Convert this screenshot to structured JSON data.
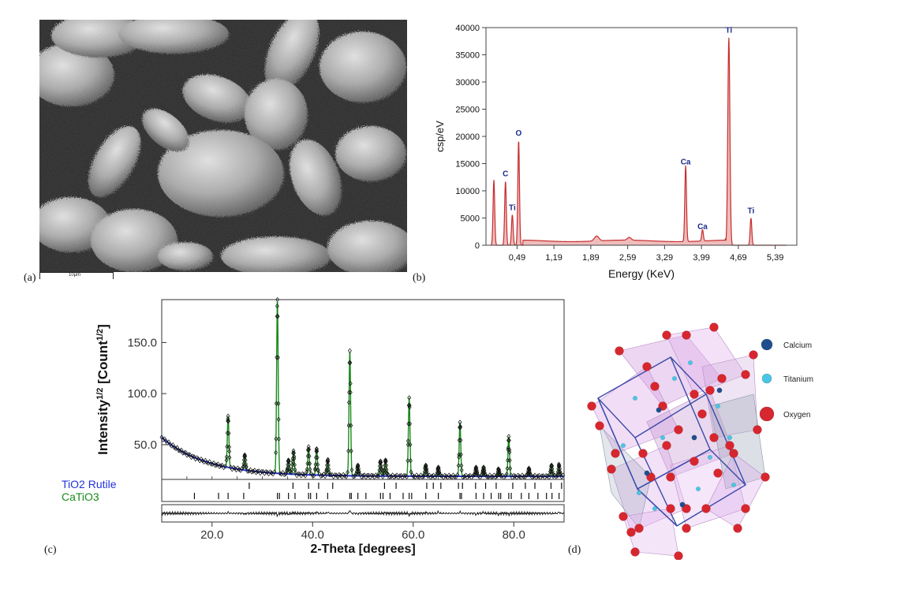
{
  "panels": {
    "a": {
      "label": "(a)",
      "scale_bar": "10μm"
    },
    "b": {
      "label": "(b)"
    },
    "c": {
      "label": "(c)"
    },
    "d": {
      "label": "(d)"
    }
  },
  "chart_data": [
    {
      "id": "edx",
      "type": "line",
      "xlabel": "Energy (KeV)",
      "ylabel": "csp/eV",
      "xlim": [
        -0.1,
        5.8
      ],
      "ylim": [
        0,
        40000
      ],
      "x_tick_labels": [
        "0,49",
        "1,19",
        "1,89",
        "2,59",
        "3,29",
        "3,99",
        "4,69",
        "5,39"
      ],
      "x_ticks": [
        0.49,
        1.19,
        1.89,
        2.59,
        3.29,
        3.99,
        4.69,
        5.39
      ],
      "y_ticks": [
        0,
        5000,
        10000,
        15000,
        20000,
        25000,
        30000,
        35000,
        40000
      ],
      "color": "#c42a2a",
      "peaks": [
        {
          "x": 0.05,
          "y": 12000,
          "label": ""
        },
        {
          "x": 0.27,
          "y": 11800,
          "label": "C"
        },
        {
          "x": 0.4,
          "y": 5600,
          "label": "Ti"
        },
        {
          "x": 0.52,
          "y": 19300,
          "label": "O"
        },
        {
          "x": 3.69,
          "y": 14000,
          "label": "Ca"
        },
        {
          "x": 4.01,
          "y": 2100,
          "label": "Ca"
        },
        {
          "x": 4.51,
          "y": 38200,
          "label": "Ti"
        },
        {
          "x": 4.93,
          "y": 5000,
          "label": "Ti"
        }
      ]
    },
    {
      "id": "xrd",
      "type": "line",
      "xlabel": "2-Theta [degrees]",
      "ylabel": "Intensity",
      "ylabel_sup": "1/2",
      "ylabel_unit": " [Count",
      "ylabel_close": "]",
      "xlim": [
        10,
        90
      ],
      "ylim": [
        16,
        192
      ],
      "x_tick_labels": [
        "20.0",
        "40.0",
        "60.0",
        "80.0"
      ],
      "x_ticks": [
        20,
        40,
        60,
        80
      ],
      "y_tick_labels": [
        "50.0",
        "100.0",
        "150.0"
      ],
      "y_ticks": [
        50,
        100,
        150
      ],
      "series": [
        {
          "name": "TiO2 Rutile",
          "color": "#2233dd"
        },
        {
          "name": "CaTiO3",
          "color": "#1a8a1a"
        }
      ],
      "peaks": [
        {
          "x": 23.2,
          "y": 78
        },
        {
          "x": 26.5,
          "y": 40
        },
        {
          "x": 33.0,
          "y": 192
        },
        {
          "x": 35.2,
          "y": 35
        },
        {
          "x": 36.2,
          "y": 44
        },
        {
          "x": 39.2,
          "y": 48
        },
        {
          "x": 40.8,
          "y": 46
        },
        {
          "x": 43.0,
          "y": 35
        },
        {
          "x": 47.4,
          "y": 142
        },
        {
          "x": 49.0,
          "y": 30
        },
        {
          "x": 53.5,
          "y": 34
        },
        {
          "x": 54.5,
          "y": 35
        },
        {
          "x": 59.2,
          "y": 96
        },
        {
          "x": 62.5,
          "y": 30
        },
        {
          "x": 65.0,
          "y": 28
        },
        {
          "x": 69.3,
          "y": 72
        },
        {
          "x": 72.5,
          "y": 28
        },
        {
          "x": 74.0,
          "y": 28
        },
        {
          "x": 77.0,
          "y": 26
        },
        {
          "x": 79.0,
          "y": 58
        },
        {
          "x": 83.0,
          "y": 27
        },
        {
          "x": 87.5,
          "y": 30
        },
        {
          "x": 89.0,
          "y": 30
        }
      ],
      "rutile_ticks": [
        27.4,
        36.1,
        39.2,
        41.2,
        44.0,
        54.3,
        56.6,
        62.7,
        64.0,
        65.5,
        69.0,
        69.8,
        72.4,
        74.4,
        76.5,
        79.8,
        82.3,
        84.2,
        87.4,
        89.5
      ],
      "catio3_ticks": [
        16.5,
        21.3,
        23.2,
        26.3,
        33.0,
        33.4,
        35.2,
        36.5,
        39.2,
        39.6,
        40.8,
        43.0,
        47.4,
        47.7,
        49.0,
        50.6,
        53.5,
        54.0,
        55.4,
        58.0,
        59.2,
        59.7,
        62.5,
        65.0,
        69.3,
        69.6,
        72.5,
        74.0,
        75.5,
        77.0,
        77.4,
        79.0,
        79.5,
        81.5,
        83.0,
        84.8,
        86.5,
        87.6,
        89.0
      ]
    }
  ],
  "crystal_legend": [
    {
      "name": "Calcium",
      "color": "#1f4e8f"
    },
    {
      "name": "Titanium",
      "color": "#49c6e5"
    },
    {
      "name": "Oxygen",
      "color": "#d8262f"
    }
  ]
}
